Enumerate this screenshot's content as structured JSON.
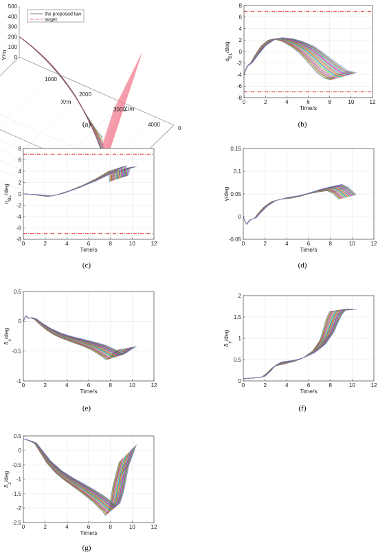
{
  "chart_data": [
    {
      "id": "a",
      "panel_label": "(a)",
      "type": "line3d",
      "xlabel": "X/m",
      "ylabel": "Y/m",
      "zlabel": "Z/m",
      "x_ticks": [
        "1000",
        "2000",
        "3000",
        "4000"
      ],
      "y_ticks": [
        "0",
        "100",
        "200",
        "300",
        "400",
        "500"
      ],
      "z_ticks": [
        "0",
        "200",
        "400"
      ],
      "legend": [
        {
          "name": "the proposed law",
          "color": "#7a7a7a",
          "dash": "solid"
        },
        {
          "name": "target",
          "color": "#e0607a",
          "dash": "dashdot"
        }
      ]
    },
    {
      "id": "b",
      "panel_label": "(b)",
      "type": "line",
      "xlabel": "Time/s",
      "ylabel": "q_{BL}/deg",
      "xlim": [
        0,
        12
      ],
      "ylim": [
        -8,
        8
      ],
      "x_ticks": [
        "0",
        "2",
        "4",
        "6",
        "8",
        "10",
        "12"
      ],
      "y_ticks": [
        "-8",
        "-6",
        "-4",
        "-2",
        "0",
        "2",
        "4",
        "6",
        "8"
      ],
      "limit_lines": [
        7,
        -7
      ],
      "band": {
        "t0": 8.2,
        "t1": 10.5,
        "count": 24
      },
      "mean": [
        [
          0,
          -4
        ],
        [
          0.3,
          -2.6
        ],
        [
          0.8,
          -1.9
        ],
        [
          1.3,
          -0.6
        ],
        [
          2,
          1.0
        ],
        [
          2.8,
          2.0
        ],
        [
          3.5,
          2.3
        ],
        [
          4.5,
          2.0
        ],
        [
          5.5,
          1.3
        ],
        [
          6.5,
          0.3
        ],
        [
          7.5,
          -1.2
        ],
        [
          8.5,
          -2.8
        ],
        [
          9.5,
          -4.0
        ],
        [
          10.3,
          -4.3
        ]
      ],
      "spread": [
        [
          0,
          0
        ],
        [
          3,
          0.05
        ],
        [
          5,
          0.3
        ],
        [
          7,
          0.6
        ],
        [
          8.5,
          0.8
        ],
        [
          10.3,
          0.6
        ]
      ]
    },
    {
      "id": "c",
      "panel_label": "(c)",
      "type": "line",
      "xlabel": "Time/s",
      "ylabel": "η_{BL}/deg",
      "xlim": [
        0,
        12
      ],
      "ylim": [
        -8,
        8
      ],
      "x_ticks": [
        "0",
        "2",
        "4",
        "6",
        "8",
        "10",
        "12"
      ],
      "y_ticks": [
        "-8",
        "-6",
        "-4",
        "-2",
        "0",
        "2",
        "4",
        "6",
        "8"
      ],
      "limit_lines": [
        7,
        -7
      ],
      "band": {
        "t0": 8.6,
        "t1": 10.4,
        "count": 24
      },
      "mean": [
        [
          0,
          0
        ],
        [
          1,
          -0.1
        ],
        [
          2,
          -0.3
        ],
        [
          2.6,
          -0.4
        ],
        [
          3.5,
          -0.1
        ],
        [
          5,
          0.8
        ],
        [
          6.5,
          1.9
        ],
        [
          8,
          3.2
        ],
        [
          9,
          4.2
        ],
        [
          9.3,
          4.5
        ],
        [
          9.45,
          2.0
        ],
        [
          9.6,
          4.2
        ],
        [
          10.2,
          4.3
        ]
      ],
      "spread": [
        [
          0,
          0
        ],
        [
          2.5,
          0.05
        ],
        [
          5,
          0.25
        ],
        [
          7,
          0.4
        ],
        [
          9,
          0.5
        ],
        [
          10.3,
          0.5
        ]
      ]
    },
    {
      "id": "d",
      "panel_label": "(d)",
      "type": "line",
      "xlabel": "Time/s",
      "ylabel": "γ/deg",
      "xlim": [
        0,
        12
      ],
      "ylim": [
        -0.05,
        0.15
      ],
      "x_ticks": [
        "0",
        "2",
        "4",
        "6",
        "8",
        "10",
        "12"
      ],
      "y_ticks": [
        "-0.05",
        "0",
        "0.05",
        "0.1",
        "0.15"
      ],
      "band": {
        "t0": 8.8,
        "t1": 10.4,
        "count": 24
      },
      "mean": [
        [
          0,
          0
        ],
        [
          0.3,
          -0.018
        ],
        [
          0.55,
          -0.01
        ],
        [
          0.8,
          -0.006
        ],
        [
          1.2,
          -0.003
        ],
        [
          1.6,
          0.008
        ],
        [
          2.2,
          0.022
        ],
        [
          3,
          0.034
        ],
        [
          4,
          0.04
        ],
        [
          5,
          0.043
        ],
        [
          6,
          0.048
        ],
        [
          7,
          0.055
        ],
        [
          8,
          0.06
        ],
        [
          9,
          0.064
        ],
        [
          9.6,
          0.058
        ],
        [
          10.3,
          0.043
        ]
      ],
      "spread": [
        [
          0,
          0
        ],
        [
          2,
          0.001
        ],
        [
          4,
          0.002
        ],
        [
          6,
          0.004
        ],
        [
          8,
          0.006
        ],
        [
          9,
          0.007
        ],
        [
          10.3,
          0.005
        ]
      ]
    },
    {
      "id": "e",
      "panel_label": "(e)",
      "type": "line",
      "xlabel": "Time/s",
      "ylabel": "δ_x/deg",
      "xlim": [
        0,
        12
      ],
      "ylim": [
        -1,
        0.5
      ],
      "x_ticks": [
        "0",
        "2",
        "4",
        "6",
        "8",
        "10",
        "12"
      ],
      "y_ticks": [
        "-1",
        "-0.5",
        "0",
        "0.5"
      ],
      "band": {
        "t0": 8.6,
        "t1": 10.4,
        "count": 24
      },
      "mean": [
        [
          0,
          0
        ],
        [
          0.25,
          0.1
        ],
        [
          0.5,
          0.05
        ],
        [
          0.8,
          0.06
        ],
        [
          1.2,
          0.04
        ],
        [
          1.6,
          -0.02
        ],
        [
          2.5,
          -0.13
        ],
        [
          3.5,
          -0.22
        ],
        [
          4.5,
          -0.28
        ],
        [
          5.5,
          -0.33
        ],
        [
          6.5,
          -0.38
        ],
        [
          7.5,
          -0.44
        ],
        [
          8.5,
          -0.53
        ],
        [
          9.2,
          -0.6
        ],
        [
          9.6,
          -0.54
        ],
        [
          10.3,
          -0.45
        ]
      ],
      "spread": [
        [
          0,
          0
        ],
        [
          1.5,
          0.005
        ],
        [
          3,
          0.015
        ],
        [
          5,
          0.025
        ],
        [
          7,
          0.035
        ],
        [
          9,
          0.05
        ],
        [
          10.3,
          0.03
        ]
      ]
    },
    {
      "id": "f",
      "panel_label": "(f)",
      "type": "line",
      "xlabel": "Time/s",
      "ylabel": "δ_y/deg",
      "xlim": [
        0,
        12
      ],
      "ylim": [
        0,
        2
      ],
      "x_ticks": [
        "0",
        "2",
        "4",
        "6",
        "8",
        "10",
        "12"
      ],
      "y_ticks": [
        "0",
        "0.5",
        "1",
        "1.5",
        "2"
      ],
      "band": {
        "t0": 8.7,
        "t1": 10.4,
        "count": 24
      },
      "mean": [
        [
          0,
          0.05
        ],
        [
          0.5,
          0.06
        ],
        [
          1.5,
          0.08
        ],
        [
          2,
          0.1
        ],
        [
          2.5,
          0.2
        ],
        [
          3,
          0.33
        ],
        [
          3.5,
          0.4
        ],
        [
          4.5,
          0.44
        ],
        [
          5.5,
          0.5
        ],
        [
          6.5,
          0.6
        ],
        [
          7.5,
          0.78
        ],
        [
          8.3,
          1.05
        ],
        [
          9,
          1.5
        ],
        [
          9.4,
          1.66
        ],
        [
          10.3,
          1.66
        ]
      ],
      "spread": [
        [
          0,
          0
        ],
        [
          2,
          0.01
        ],
        [
          3,
          0.05
        ],
        [
          5,
          0.04
        ],
        [
          7,
          0.07
        ],
        [
          8.5,
          0.12
        ],
        [
          9.3,
          0.03
        ],
        [
          10.3,
          0.02
        ]
      ]
    },
    {
      "id": "g",
      "panel_label": "(g)",
      "type": "line",
      "xlabel": "Time/s",
      "ylabel": "δ_z/deg",
      "xlim": [
        0,
        12
      ],
      "ylim": [
        -2.5,
        0.5
      ],
      "x_ticks": [
        "0",
        "2",
        "4",
        "6",
        "8",
        "10",
        "12"
      ],
      "y_ticks": [
        "-2.5",
        "-2",
        "-1.5",
        "-1",
        "-0.5",
        "0",
        "0.5"
      ],
      "band": {
        "t0": 8.8,
        "t1": 10.4,
        "count": 24
      },
      "mean": [
        [
          0,
          0.4
        ],
        [
          0.5,
          0.35
        ],
        [
          1.2,
          0.25
        ],
        [
          1.8,
          -0.05
        ],
        [
          2.5,
          -0.4
        ],
        [
          3.5,
          -0.75
        ],
        [
          4.5,
          -1.0
        ],
        [
          5.5,
          -1.22
        ],
        [
          6.5,
          -1.45
        ],
        [
          7.5,
          -1.7
        ],
        [
          8.3,
          -1.95
        ],
        [
          8.8,
          -2.05
        ],
        [
          9.2,
          -1.7
        ],
        [
          9.6,
          -0.9
        ],
        [
          10.3,
          -0.1
        ]
      ],
      "spread": [
        [
          0,
          0
        ],
        [
          1.5,
          0.01
        ],
        [
          3,
          0.04
        ],
        [
          5,
          0.06
        ],
        [
          7,
          0.08
        ],
        [
          8.5,
          0.1
        ],
        [
          9.3,
          0.4
        ],
        [
          10.3,
          0.3
        ]
      ]
    }
  ]
}
